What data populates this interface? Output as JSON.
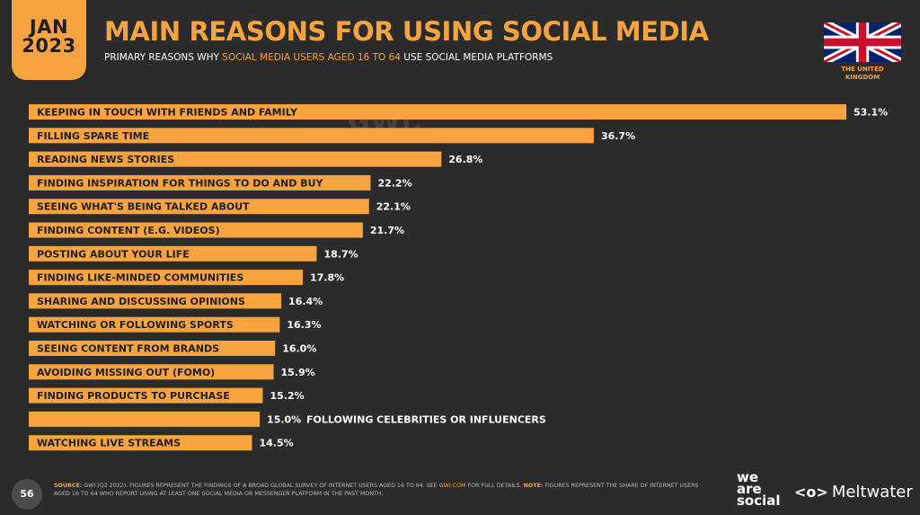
{
  "badge": {
    "month": "JAN",
    "year": "2023"
  },
  "header": {
    "title": "MAIN REASONS FOR USING SOCIAL MEDIA",
    "subtitle_pre": "PRIMARY REASONS WHY ",
    "subtitle_hl": "SOCIAL MEDIA USERS AGED 16 TO 64",
    "subtitle_post": " USE SOCIAL MEDIA PLATFORMS"
  },
  "country": {
    "line1": "THE UNITED",
    "line2": "KINGDOM"
  },
  "watermark": "GWI.",
  "colors": {
    "background": "#2b2b2b",
    "accent": "#f7a440",
    "bar": "#f7a440"
  },
  "chart_data": {
    "type": "bar",
    "orientation": "horizontal",
    "categories": [
      "KEEPING IN TOUCH WITH FRIENDS AND FAMILY",
      "FILLING SPARE TIME",
      "READING NEWS STORIES",
      "FINDING INSPIRATION FOR THINGS TO DO AND BUY",
      "SEEING WHAT'S BEING TALKED ABOUT",
      "FINDING CONTENT (E.G. VIDEOS)",
      "POSTING ABOUT YOUR LIFE",
      "FINDING LIKE-MINDED COMMUNITIES",
      "SHARING AND DISCUSSING OPINIONS",
      "WATCHING OR FOLLOWING SPORTS",
      "SEEING CONTENT FROM BRANDS",
      "AVOIDING MISSING OUT (FOMO)",
      "FINDING PRODUCTS TO PURCHASE",
      "FOLLOWING CELEBRITIES OR INFLUENCERS",
      "WATCHING LIVE STREAMS"
    ],
    "values": [
      53.1,
      36.7,
      26.8,
      22.2,
      22.1,
      21.7,
      18.7,
      17.8,
      16.4,
      16.3,
      16.0,
      15.9,
      15.2,
      15.0,
      14.5
    ],
    "value_labels": [
      "53.1%",
      "36.7%",
      "26.8%",
      "22.2%",
      "22.1%",
      "21.7%",
      "18.7%",
      "17.8%",
      "16.4%",
      "16.3%",
      "16.0%",
      "15.9%",
      "15.2%",
      "15.0%",
      "14.5%"
    ],
    "xlim": [
      0,
      53.1
    ]
  },
  "footer": {
    "page_number": "56",
    "source_label": "SOURCE:",
    "source_text": " GWI (Q3 2022). FIGURES REPRESENT THE FINDINGS OF A BROAD GLOBAL SURVEY OF INTERNET USERS AGED 16 TO 64. SEE ",
    "source_link": "GWI.COM",
    "source_text2": " FOR FULL DETAILS. ",
    "note_label": "NOTE:",
    "note_text": " FIGURES REPRESENT THE SHARE OF INTERNET USERS AGED 16 TO 64 WHO REPORT USING AT LEAST ONE SOCIAL MEDIA OR MESSENGER PLATFORM IN THE PAST MONTH.",
    "brand1_l1": "we",
    "brand1_l2": "are",
    "brand1_l3": "social",
    "brand2_icon": "<o>",
    "brand2": "Meltwater"
  }
}
